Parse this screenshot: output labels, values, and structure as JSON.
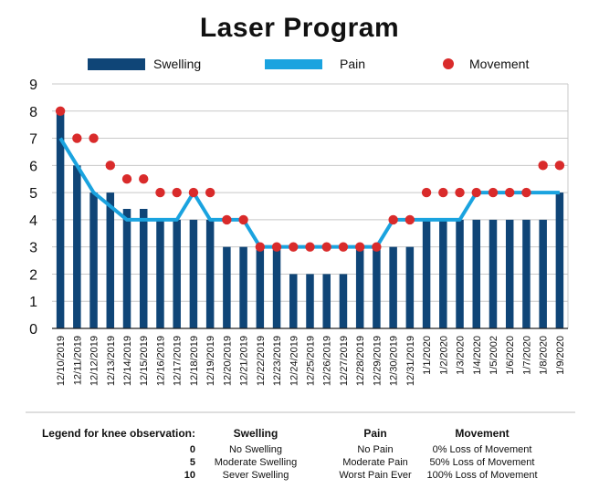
{
  "chart_data": {
    "type": "bar",
    "title": "Laser Program",
    "categories": [
      "12/10/2019",
      "12/11/2019",
      "12/12/2019",
      "12/13/2019",
      "12/14/2019",
      "12/15/2019",
      "12/16/2019",
      "12/17/2019",
      "12/18/2019",
      "12/19/2019",
      "12/20/2019",
      "12/21/2019",
      "12/22/2019",
      "12/23/2019",
      "12/24/2019",
      "12/25/2019",
      "12/26/2019",
      "12/27/2019",
      "12/28/2019",
      "12/29/2019",
      "12/30/2019",
      "12/31/2019",
      "1/1/2020",
      "1/2/2020",
      "1/3/2020",
      "1/4/2020",
      "1/5/2002",
      "1/6/2020",
      "1/7/2020",
      "1/8/2020",
      "1/9/2020"
    ],
    "series": [
      {
        "name": "Swelling",
        "kind": "bar",
        "color": "#0f4577",
        "values": [
          8,
          6,
          5,
          5,
          4.4,
          4.4,
          4,
          4,
          4,
          4,
          3,
          3,
          3,
          3,
          2,
          2,
          2,
          2,
          3,
          3,
          3,
          3,
          4,
          4,
          4,
          4,
          4,
          4,
          4,
          4,
          5
        ]
      },
      {
        "name": "Pain",
        "kind": "line",
        "color": "#1aa3df",
        "values": [
          7,
          6,
          5,
          4.5,
          4,
          4,
          4,
          4,
          5,
          4,
          4,
          4,
          3,
          3,
          3,
          3,
          3,
          3,
          3,
          3,
          4,
          4,
          4,
          4,
          4,
          5,
          5,
          5,
          5,
          5,
          5
        ]
      },
      {
        "name": "Movement",
        "kind": "scatter",
        "color": "#d92b2b",
        "values": [
          8,
          7,
          7,
          6,
          5.5,
          5.5,
          5,
          5,
          5,
          5,
          4,
          4,
          3,
          3,
          3,
          3,
          3,
          3,
          3,
          3,
          4,
          4,
          5,
          5,
          5,
          5,
          5,
          5,
          5,
          6,
          6
        ]
      }
    ],
    "ylim": [
      0,
      9
    ],
    "yticks": [
      0,
      1,
      2,
      3,
      4,
      5,
      6,
      7,
      8,
      9
    ],
    "grid": true,
    "legend_placement": "top"
  },
  "legend_table": {
    "header": [
      "Legend for knee observation:",
      "Swelling",
      "Pain",
      "Movement"
    ],
    "rows": [
      {
        "level": "0",
        "swelling": "No Swelling",
        "pain": "No Pain",
        "movement": "0% Loss of Movement"
      },
      {
        "level": "5",
        "swelling": "Moderate Swelling",
        "pain": "Moderate Pain",
        "movement": "50% Loss of Movement"
      },
      {
        "level": "10",
        "swelling": "Sever Swelling",
        "pain": "Worst Pain Ever",
        "movement": "100% Loss of Movement"
      }
    ]
  }
}
